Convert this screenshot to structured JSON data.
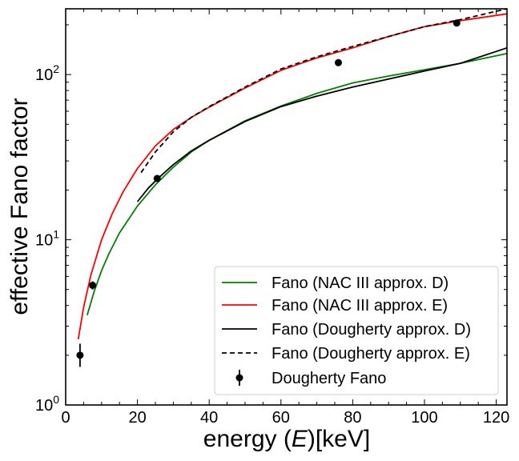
{
  "chart_data": {
    "type": "line",
    "xlabel_prefix": "energy (",
    "xlabel_var": "E",
    "xlabel_suffix": ")[keV]",
    "ylabel": "effective Fano factor",
    "xlim": [
      0,
      123
    ],
    "ylim": [
      1,
      250
    ],
    "yscale": "log",
    "x_ticks": [
      "0",
      "20",
      "40",
      "60",
      "80",
      "100",
      "120"
    ],
    "y_ticks": [
      {
        "base": "10",
        "exp": "0",
        "value": 1
      },
      {
        "base": "10",
        "exp": "1",
        "value": 10
      },
      {
        "base": "10",
        "exp": "2",
        "value": 100
      }
    ],
    "legend_position": "lower-right",
    "series": [
      {
        "name": "Fano (NAC III approx. D)",
        "color": "#008000",
        "dash": "solid",
        "x": [
          6,
          8,
          10,
          12,
          15,
          20,
          25,
          30,
          35,
          40,
          50,
          60,
          70,
          80,
          90,
          100,
          110,
          123
        ],
        "y": [
          3.5,
          4.9,
          6.5,
          8.2,
          11.0,
          16.0,
          21.5,
          27.5,
          34.0,
          40.0,
          52.5,
          64.5,
          77.0,
          89.0,
          98.0,
          107.0,
          117.0,
          134.0
        ]
      },
      {
        "name": "Fano (NAC III approx. E)",
        "color": "#ff0000",
        "dash": "solid",
        "x": [
          3.5,
          5,
          7,
          10,
          13,
          16,
          20,
          25,
          30,
          35,
          40,
          50,
          60,
          70,
          80,
          90,
          100,
          110,
          123
        ],
        "y": [
          2.5,
          3.9,
          6.1,
          10.0,
          14.4,
          19.5,
          27.0,
          37.0,
          46.5,
          55.0,
          63.5,
          83.0,
          106.0,
          126.0,
          145.0,
          170.0,
          195.0,
          212.0,
          233.0
        ]
      },
      {
        "name": "Fano (Dougherty approx. D)",
        "color": "#000000",
        "dash": "solid",
        "x": [
          20,
          23,
          26,
          30,
          35,
          40,
          50,
          60,
          70,
          80,
          90,
          100,
          110,
          123
        ],
        "y": [
          17.0,
          20.5,
          23.8,
          28.5,
          34.5,
          40.0,
          52.0,
          64.0,
          74.0,
          84.0,
          94.0,
          105.0,
          117.0,
          145.0
        ]
      },
      {
        "name": "Fano (Dougherty approx. E)",
        "color": "#000000",
        "dash": "dashed",
        "x": [
          21,
          25,
          30,
          35,
          40,
          50,
          60,
          70,
          80,
          90,
          100,
          110,
          123
        ],
        "y": [
          25.5,
          34.0,
          45.0,
          55.0,
          64.0,
          84.0,
          108.0,
          128.0,
          148.0,
          170.0,
          195.0,
          215.0,
          250.0
        ]
      },
      {
        "name": "Dougherty Fano",
        "color": "#000000",
        "type": "errorbar",
        "x": [
          4,
          7.5,
          25.5,
          76,
          109
        ],
        "y": [
          2.0,
          5.3,
          23.5,
          118.0,
          205.0
        ],
        "err_low": [
          1.7,
          5.0,
          22.5,
          114.0,
          200.0
        ],
        "err_high": [
          2.35,
          5.6,
          24.5,
          122.0,
          210.0
        ]
      }
    ]
  }
}
